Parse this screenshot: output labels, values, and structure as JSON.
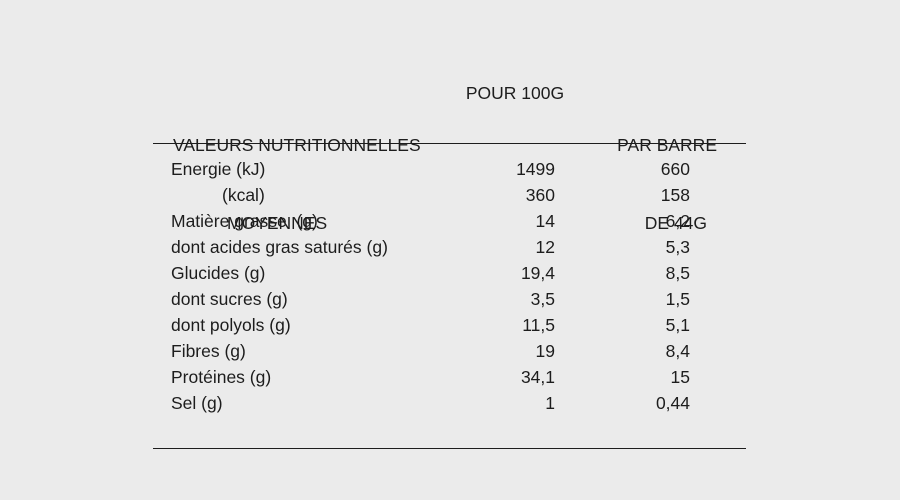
{
  "colors": {
    "background": "#ebebeb",
    "text": "#1d1d1d",
    "rule": "#1d1d1d"
  },
  "table": {
    "header": {
      "col1_line1": "VALEURS NUTRITIONNELLES",
      "col1_line2": "MOYENNES",
      "col2": "POUR 100G",
      "col3_line1": "PAR BARRE",
      "col3_line2": "DE 44G"
    },
    "rows": [
      {
        "label": "Energie (kJ)",
        "per100g": "1499",
        "per_bar": "660"
      },
      {
        "label": "(kcal)",
        "per100g": "360",
        "per_bar": "158"
      },
      {
        "label": "Matière grasse  (g)",
        "per100g": "14",
        "per_bar": "6,2"
      },
      {
        "label": "dont acides gras saturés (g)",
        "per100g": "12",
        "per_bar": "5,3"
      },
      {
        "label": "Glucides (g)",
        "per100g": "19,4",
        "per_bar": "8,5"
      },
      {
        "label": "dont sucres (g)",
        "per100g": "3,5",
        "per_bar": "1,5"
      },
      {
        "label": "dont polyols (g)",
        "per100g": "11,5",
        "per_bar": "5,1"
      },
      {
        "label": "Fibres (g)",
        "per100g": "19",
        "per_bar": "8,4"
      },
      {
        "label": "Protéines (g)",
        "per100g": "34,1",
        "per_bar": "15"
      },
      {
        "label": "Sel (g)",
        "per100g": "1",
        "per_bar": "0,44"
      }
    ]
  }
}
